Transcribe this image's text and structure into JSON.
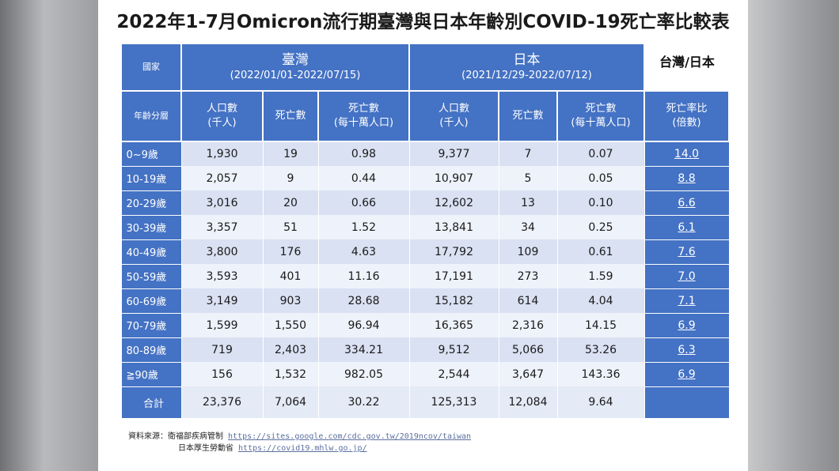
{
  "title": "2022年1-7月Omicron流行期臺灣與日本年齡別COVID-19死亡率比較表",
  "header": {
    "country_label": "國家",
    "age_label": "年齡分層",
    "taiwan_name": "臺灣",
    "taiwan_range": "(2022/01/01-2022/07/15)",
    "japan_name": "日本",
    "japan_range": "(2021/12/29-2022/07/12)",
    "corner": "台灣/日本",
    "col_population": "人口數",
    "col_population_unit": "(千人)",
    "col_deaths": "死亡數",
    "col_rate": "死亡數",
    "col_rate_unit": "(每十萬人口)",
    "col_ratio": "死亡率比",
    "col_ratio_unit": "(倍數)"
  },
  "rows": [
    {
      "age": "0~9歲",
      "tw_pop": "1,930",
      "tw_deaths": "19",
      "tw_rate": "0.98",
      "jp_pop": "9,377",
      "jp_deaths": "7",
      "jp_rate": "0.07",
      "ratio": "14.0"
    },
    {
      "age": "10-19歲",
      "tw_pop": "2,057",
      "tw_deaths": "9",
      "tw_rate": "0.44",
      "jp_pop": "10,907",
      "jp_deaths": "5",
      "jp_rate": "0.05",
      "ratio": "8.8"
    },
    {
      "age": "20-29歲",
      "tw_pop": "3,016",
      "tw_deaths": "20",
      "tw_rate": "0.66",
      "jp_pop": "12,602",
      "jp_deaths": "13",
      "jp_rate": "0.10",
      "ratio": "6.6"
    },
    {
      "age": "30-39歲",
      "tw_pop": "3,357",
      "tw_deaths": "51",
      "tw_rate": "1.52",
      "jp_pop": "13,841",
      "jp_deaths": "34",
      "jp_rate": "0.25",
      "ratio": "6.1"
    },
    {
      "age": "40-49歲",
      "tw_pop": "3,800",
      "tw_deaths": "176",
      "tw_rate": "4.63",
      "jp_pop": "17,792",
      "jp_deaths": "109",
      "jp_rate": "0.61",
      "ratio": "7.6"
    },
    {
      "age": "50-59歲",
      "tw_pop": "3,593",
      "tw_deaths": "401",
      "tw_rate": "11.16",
      "jp_pop": "17,191",
      "jp_deaths": "273",
      "jp_rate": "1.59",
      "ratio": "7.0"
    },
    {
      "age": "60-69歲",
      "tw_pop": "3,149",
      "tw_deaths": "903",
      "tw_rate": "28.68",
      "jp_pop": "15,182",
      "jp_deaths": "614",
      "jp_rate": "4.04",
      "ratio": "7.1"
    },
    {
      "age": "70-79歲",
      "tw_pop": "1,599",
      "tw_deaths": "1,550",
      "tw_rate": "96.94",
      "jp_pop": "16,365",
      "jp_deaths": "2,316",
      "jp_rate": "14.15",
      "ratio": "6.9"
    },
    {
      "age": "80-89歲",
      "tw_pop": "719",
      "tw_deaths": "2,403",
      "tw_rate": "334.21",
      "jp_pop": "9,512",
      "jp_deaths": "5,066",
      "jp_rate": "53.26",
      "ratio": "6.3"
    },
    {
      "age": "≧90歲",
      "tw_pop": "156",
      "tw_deaths": "1,532",
      "tw_rate": "982.05",
      "jp_pop": "2,544",
      "jp_deaths": "3,647",
      "jp_rate": "143.36",
      "ratio": "6.9"
    }
  ],
  "total": {
    "age": "合計",
    "tw_pop": "23,376",
    "tw_deaths": "7,064",
    "tw_rate": "30.22",
    "jp_pop": "125,313",
    "jp_deaths": "12,084",
    "jp_rate": "9.64",
    "ratio": ""
  },
  "source": {
    "label": "資料來源：衛福部疾病管制",
    "taiwan_url": "https://sites.google.com/cdc.gov.tw/2019ncov/taiwan",
    "japan_label": "日本厚生勞動省",
    "japan_url": "https://covid19.mhlw.go.jp/"
  }
}
